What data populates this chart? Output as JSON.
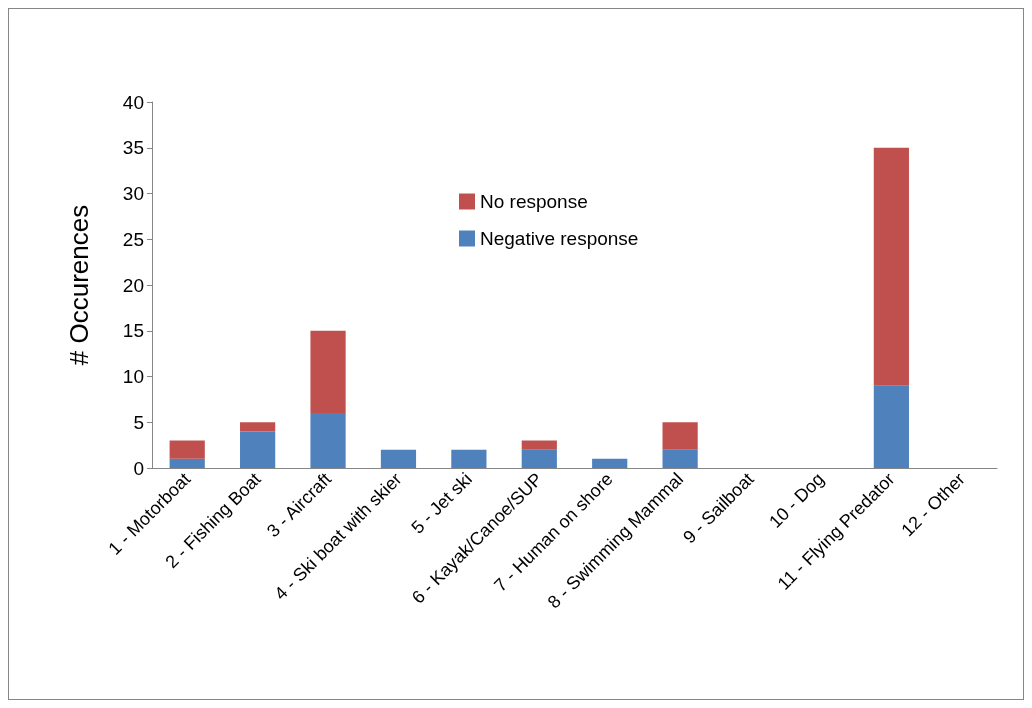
{
  "chart_data": {
    "type": "bar",
    "stacked": true,
    "ylabel": "# Occurences",
    "categories": [
      "1 - Motorboat",
      "2 - Fishing Boat",
      "3 - Aircraft",
      "4 - Ski boat with skier",
      "5 - Jet ski",
      "6 - Kayak/Canoe/SUP",
      "7 - Human on shore",
      "8 - Swimming Mammal",
      "9 - Sailboat",
      "10 - Dog",
      "11 - Flying Predator",
      "12 - Other"
    ],
    "series": [
      {
        "name": "Negative response",
        "color": "#4f81bd",
        "values": [
          1,
          4,
          6,
          2,
          2,
          2,
          1,
          2,
          0,
          0,
          9,
          0
        ]
      },
      {
        "name": "No response",
        "color": "#c0504d",
        "values": [
          2,
          1,
          9,
          0,
          0,
          1,
          0,
          3,
          0,
          0,
          26,
          0
        ]
      }
    ],
    "ylim": [
      0,
      40
    ],
    "yticks": [
      0,
      5,
      10,
      15,
      20,
      25,
      30,
      35,
      40
    ],
    "grid": false,
    "legend": "top"
  }
}
